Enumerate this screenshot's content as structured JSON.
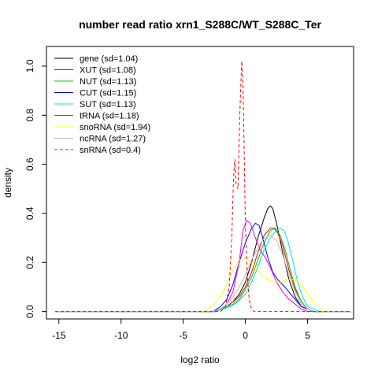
{
  "chart_data": {
    "type": "line",
    "title": "number read ratio xrn1_S288C/WT_S288C_Ter",
    "xlabel": "log2 ratio",
    "ylabel": "density",
    "xlim": [
      -16,
      8.7
    ],
    "ylim": [
      -0.03,
      1.08
    ],
    "xticks": [
      -15,
      -10,
      -5,
      0,
      5
    ],
    "yticks": [
      0.0,
      0.2,
      0.4,
      0.6,
      0.8,
      1.0
    ],
    "xtick_labels": [
      "-15",
      "-10",
      "-5",
      "0",
      "5"
    ],
    "ytick_labels": [
      "0.0",
      "0.2",
      "0.4",
      "0.6",
      "0.8",
      "1.0"
    ],
    "grid": false,
    "legend_position": "top-left",
    "series": [
      {
        "name": "gene (sd=1.04)",
        "color": "#000000",
        "dash": "solid",
        "x": [
          -15.3,
          -2.6,
          -2.0,
          -1.5,
          -1.0,
          -0.5,
          0.0,
          0.5,
          1.0,
          1.5,
          1.8,
          2.0,
          2.2,
          2.5,
          3.0,
          3.5,
          4.0,
          4.5,
          5.0,
          5.5,
          8.5
        ],
        "y": [
          0.0,
          0.0,
          0.01,
          0.02,
          0.04,
          0.07,
          0.12,
          0.2,
          0.3,
          0.38,
          0.42,
          0.43,
          0.42,
          0.36,
          0.24,
          0.13,
          0.06,
          0.02,
          0.01,
          0.0,
          0.0
        ]
      },
      {
        "name": "XUT (sd=1.08)",
        "color": "#ff0000",
        "dash": "solid",
        "x": [
          -15.3,
          -2.5,
          -2.0,
          -1.5,
          -1.0,
          -0.5,
          0.0,
          0.5,
          1.0,
          1.5,
          2.0,
          2.3,
          2.6,
          3.0,
          3.5,
          4.0,
          4.5,
          5.0,
          5.5,
          8.5
        ],
        "y": [
          0.0,
          0.0,
          0.01,
          0.02,
          0.04,
          0.06,
          0.1,
          0.16,
          0.24,
          0.31,
          0.34,
          0.34,
          0.32,
          0.27,
          0.17,
          0.09,
          0.04,
          0.01,
          0.0,
          0.0
        ]
      },
      {
        "name": "NUT (sd=1.13)",
        "color": "#00cc00",
        "dash": "solid",
        "x": [
          -15.3,
          -2.5,
          -2.0,
          -1.5,
          -1.0,
          -0.5,
          0.0,
          0.5,
          1.0,
          1.5,
          2.0,
          2.4,
          2.8,
          3.2,
          3.6,
          4.0,
          4.5,
          5.0,
          5.5,
          8.5
        ],
        "y": [
          0.0,
          0.0,
          0.01,
          0.02,
          0.03,
          0.05,
          0.09,
          0.14,
          0.21,
          0.28,
          0.33,
          0.34,
          0.31,
          0.25,
          0.17,
          0.1,
          0.04,
          0.01,
          0.0,
          0.0
        ]
      },
      {
        "name": "CUT (sd=1.15)",
        "color": "#0000ff",
        "dash": "solid",
        "x": [
          -15.3,
          -2.6,
          -2.0,
          -1.5,
          -1.0,
          -0.5,
          0.0,
          0.5,
          0.8,
          1.1,
          1.4,
          1.8,
          2.2,
          2.6,
          3.0,
          3.5,
          4.0,
          4.5,
          5.0,
          5.5,
          8.5
        ],
        "y": [
          0.0,
          0.0,
          0.02,
          0.05,
          0.11,
          0.2,
          0.28,
          0.34,
          0.36,
          0.35,
          0.3,
          0.22,
          0.16,
          0.13,
          0.11,
          0.08,
          0.05,
          0.02,
          0.01,
          0.0,
          0.0
        ]
      },
      {
        "name": "SUT (sd=1.13)",
        "color": "#00e5e5",
        "dash": "solid",
        "x": [
          -15.3,
          -2.4,
          -1.8,
          -1.2,
          -0.6,
          0.0,
          0.5,
          1.0,
          1.5,
          2.0,
          2.5,
          2.8,
          3.1,
          3.4,
          3.8,
          4.2,
          4.6,
          5.0,
          5.5,
          6.0,
          8.5
        ],
        "y": [
          0.0,
          0.0,
          0.01,
          0.02,
          0.04,
          0.07,
          0.12,
          0.18,
          0.25,
          0.3,
          0.33,
          0.34,
          0.33,
          0.29,
          0.21,
          0.12,
          0.06,
          0.02,
          0.01,
          0.0,
          0.0
        ]
      },
      {
        "name": "tRNA (sd=1.18)",
        "color": "#ee00ee",
        "dash": "solid",
        "x": [
          -15.3,
          -2.5,
          -2.0,
          -1.5,
          -1.0,
          -0.5,
          -0.2,
          0.1,
          0.4,
          0.8,
          1.2,
          1.6,
          2.0,
          2.5,
          3.0,
          3.5,
          4.0,
          4.5,
          5.0,
          5.5,
          8.5
        ],
        "y": [
          0.0,
          0.0,
          0.01,
          0.03,
          0.08,
          0.2,
          0.33,
          0.37,
          0.36,
          0.3,
          0.25,
          0.22,
          0.18,
          0.12,
          0.08,
          0.05,
          0.03,
          0.01,
          0.0,
          0.0,
          0.0
        ]
      },
      {
        "name": "snoRNA (sd=1.94)",
        "color": "#ffff00",
        "dash": "solid",
        "x": [
          -15.3,
          -3.5,
          -3.0,
          -2.5,
          -2.0,
          -1.5,
          -1.0,
          -0.5,
          -0.1,
          0.3,
          0.8,
          1.3,
          1.8,
          2.3,
          2.8,
          3.3,
          3.8,
          4.3,
          4.8,
          5.3,
          5.8,
          6.3,
          8.5
        ],
        "y": [
          0.0,
          0.0,
          0.01,
          0.03,
          0.06,
          0.11,
          0.17,
          0.21,
          0.22,
          0.21,
          0.18,
          0.15,
          0.13,
          0.12,
          0.12,
          0.13,
          0.13,
          0.12,
          0.09,
          0.05,
          0.02,
          0.0,
          0.0
        ]
      },
      {
        "name": "ncRNA (sd=1.27)",
        "color": "#bebebe",
        "dash": "solid",
        "x": [
          -15.3,
          -2.6,
          -2.0,
          -1.5,
          -1.0,
          -0.5,
          0.0,
          0.5,
          1.0,
          1.5,
          2.0,
          2.5,
          3.0,
          3.5,
          4.0,
          4.5,
          5.0,
          5.5,
          8.5
        ],
        "y": [
          0.0,
          0.0,
          0.01,
          0.03,
          0.06,
          0.1,
          0.15,
          0.21,
          0.26,
          0.3,
          0.31,
          0.29,
          0.23,
          0.15,
          0.08,
          0.03,
          0.01,
          0.0,
          0.0
        ]
      },
      {
        "name": "snRNA (sd=0.4)",
        "color": "#ff0000",
        "dash": "dashed",
        "x": [
          -15.3,
          -2.0,
          -1.6,
          -1.3,
          -1.1,
          -0.95,
          -0.85,
          -0.75,
          -0.6,
          -0.45,
          -0.3,
          -0.2,
          -0.1,
          0.0,
          0.15,
          0.3,
          0.5,
          0.7,
          0.9,
          8.5
        ],
        "y": [
          0.0,
          0.0,
          0.02,
          0.1,
          0.3,
          0.55,
          0.62,
          0.52,
          0.5,
          0.8,
          1.02,
          0.95,
          0.65,
          0.35,
          0.15,
          0.05,
          0.01,
          0.0,
          0.0,
          0.0
        ]
      }
    ]
  }
}
